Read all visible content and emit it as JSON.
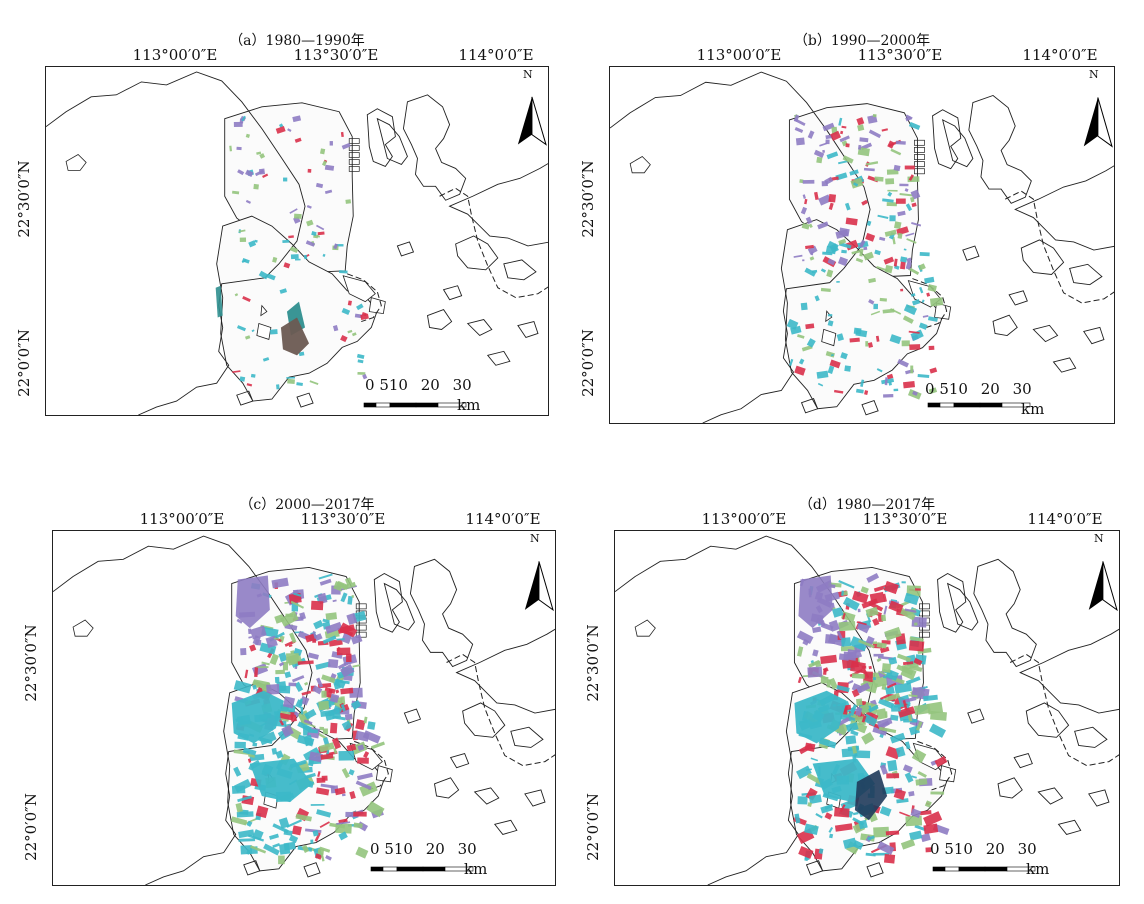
{
  "panels": [
    {
      "id": "a",
      "title": "（a）1980—1990年",
      "density": 0.2
    },
    {
      "id": "b",
      "title": "（b）1990—2000年",
      "density": 0.55
    },
    {
      "id": "c",
      "title": "（c）2000—2017年",
      "density": 0.95
    },
    {
      "id": "d",
      "title": "（d）1980—2017年",
      "density": 1.0
    }
  ],
  "graticule": {
    "lon_labels": [
      "113°00′0″E",
      "113°30′0″E",
      "114°0′0″E"
    ],
    "lat_labels": [
      "22°30′0″N",
      "22°0′0″N"
    ]
  },
  "north_arrow": {
    "label": "N"
  },
  "scale_bar": {
    "ticks": [
      "0",
      "5",
      "10",
      "20",
      "30"
    ],
    "unit": "km"
  },
  "colors": {
    "coast": "#222222",
    "purple": "#8e7cc3",
    "green": "#93c47d",
    "cyan": "#3cb8c8",
    "red": "#d9304a",
    "brown": "#6b5a52",
    "teal": "#2f8f8f"
  }
}
